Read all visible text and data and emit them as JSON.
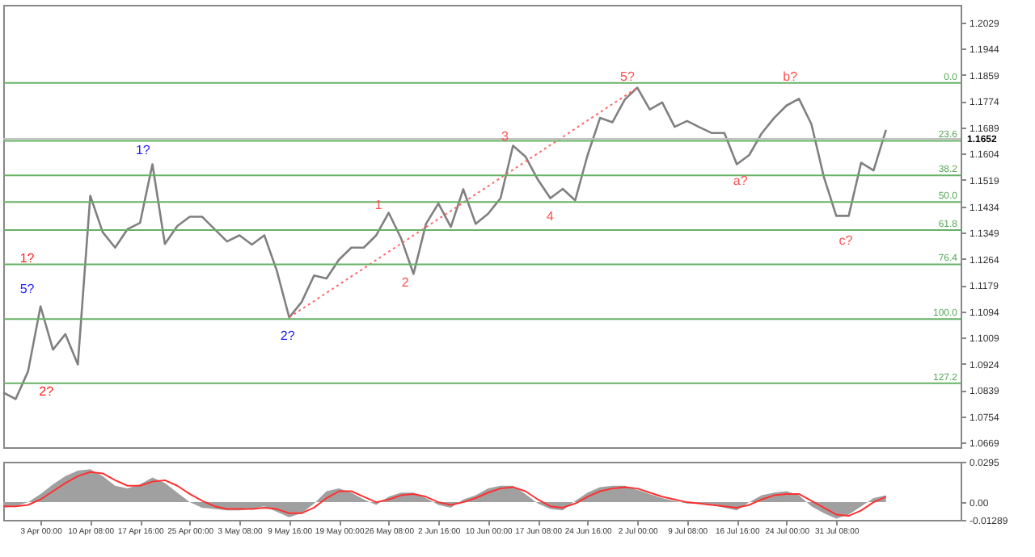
{
  "chart_data": [
    {
      "type": "line",
      "categories": [
        null,
        null,
        null,
        null,
        null,
        null,
        null,
        null,
        null,
        null,
        null,
        null,
        null,
        null,
        null,
        null,
        null,
        null,
        null,
        null,
        null,
        null,
        null,
        null,
        null,
        null,
        null,
        null,
        null,
        null,
        null,
        null,
        null,
        null,
        null,
        null,
        null,
        null,
        null,
        null,
        null,
        null,
        null,
        null,
        null,
        null,
        null,
        null,
        null,
        null,
        null,
        null,
        null,
        null,
        null,
        null,
        null,
        null,
        null,
        null,
        null,
        null,
        null,
        null,
        null,
        null,
        null,
        null,
        null,
        null,
        null,
        null,
        null,
        null,
        null,
        null,
        null,
        null
      ],
      "series": [
        {
          "color": "#808080",
          "values": [
            1.0831,
            1.081,
            1.09,
            1.111,
            1.097,
            1.102,
            1.0922,
            1.1468,
            1.135,
            1.13,
            1.136,
            1.138,
            1.157,
            1.1312,
            1.137,
            1.14,
            1.14,
            1.136,
            1.132,
            1.134,
            1.131,
            1.134,
            1.1226,
            1.1074,
            1.1124,
            1.121,
            1.12,
            1.1261,
            1.13,
            1.13,
            1.134,
            1.1413,
            1.133,
            1.1215,
            1.1377,
            1.1443,
            1.1367,
            1.1489,
            1.1377,
            1.141,
            1.146,
            1.163,
            1.1595,
            1.152,
            1.146,
            1.149,
            1.1453,
            1.16,
            1.172,
            1.1706,
            1.178,
            1.1818,
            1.1747,
            1.177,
            1.1691,
            1.171,
            1.169,
            1.1671,
            1.1671,
            1.157,
            1.16,
            1.167,
            1.172,
            1.176,
            1.1782,
            1.17,
            1.1529,
            1.1403,
            1.1403,
            1.1575,
            1.155,
            1.1681,
            null,
            null,
            null,
            null,
            null,
            null
          ]
        },
        {
          "type": "line",
          "color": "#ff6666",
          "line_style": "dotted",
          "values": [
            null,
            null,
            null,
            null,
            null,
            null,
            null,
            null,
            null,
            null,
            null,
            null,
            null,
            null,
            null,
            null,
            null,
            null,
            null,
            null,
            null,
            null,
            null,
            1.1074,
            1.1101,
            1.1127,
            1.1154,
            1.118,
            1.1207,
            1.1233,
            1.126,
            1.1287,
            1.1313,
            1.134,
            1.1366,
            1.1393,
            1.1419,
            1.1446,
            1.1473,
            1.1499,
            1.1526,
            1.1552,
            1.1579,
            1.1605,
            1.1632,
            1.1658,
            1.1685,
            1.1712,
            1.1738,
            1.1765,
            1.1791,
            1.1818,
            null,
            null,
            null,
            null,
            null,
            null,
            null,
            null,
            null,
            null,
            null,
            null,
            null,
            null,
            null,
            null,
            null,
            null,
            null,
            null,
            null,
            null,
            null,
            null,
            null,
            null
          ]
        }
      ],
      "ylim": [
        1.0654,
        1.2086
      ],
      "yticks": [
        1.0669,
        1.0754,
        1.0839,
        1.0924,
        1.1009,
        1.1094,
        1.1179,
        1.1264,
        1.1349,
        1.1434,
        1.1519,
        1.1604,
        1.1689,
        1.1774,
        1.1859,
        1.1944,
        1.2029
      ],
      "tick_labels": "y",
      "grid": false,
      "marker": "none",
      "ref_lines": [
        {
          "axis": "y",
          "value": 1.1652,
          "label": "1.1652",
          "color": "#c0c0c0"
        },
        {
          "axis": "y",
          "value": 1.1833,
          "color": "#66b266"
        },
        {
          "axis": "y",
          "value": 1.1646,
          "color": "#66b266"
        },
        {
          "axis": "y",
          "value": 1.1534,
          "color": "#66b266"
        },
        {
          "axis": "y",
          "value": 1.1448,
          "color": "#66b266"
        },
        {
          "axis": "y",
          "value": 1.1357,
          "color": "#66b266"
        },
        {
          "axis": "y",
          "value": 1.1246,
          "color": "#66b266"
        },
        {
          "axis": "y",
          "value": 1.1069,
          "color": "#66b266"
        },
        {
          "axis": "y",
          "value": 1.0861,
          "color": "#66b266"
        }
      ],
      "annotations": [
        {
          "text": "0.0",
          "y": 1.1833
        },
        {
          "text": "23.6",
          "y": 1.1646
        },
        {
          "text": "38.2",
          "y": 1.1534
        },
        {
          "text": "50.0",
          "y": 1.1448
        },
        {
          "text": "61.8",
          "y": 1.1357
        },
        {
          "text": "76.4",
          "y": 1.1246
        },
        {
          "text": "100.0",
          "y": 1.1069
        },
        {
          "text": "127.2",
          "y": 1.0861
        },
        "1?",
        "5?",
        "2?",
        "1?",
        "2?",
        "1",
        "2",
        "3",
        "4",
        "5?",
        "a?",
        "b?",
        "c?"
      ]
    },
    {
      "type": "area",
      "categories": [
        null,
        null,
        null,
        "3 Apr 00:00",
        null,
        null,
        null,
        "10 Apr 08:00",
        null,
        null,
        null,
        "17 Apr 16:00",
        null,
        null,
        null,
        "25 Apr 00:00",
        null,
        null,
        null,
        "3 May 08:00",
        null,
        null,
        null,
        "9 May 16:00",
        null,
        null,
        null,
        "19 May 00:00",
        null,
        null,
        null,
        "26 May 08:00",
        null,
        null,
        null,
        "2 Jun 16:00",
        null,
        null,
        null,
        "10 Jun 00:00",
        null,
        null,
        null,
        "17 Jun 08:00",
        null,
        null,
        null,
        "24 Jun 16:00",
        null,
        null,
        null,
        "2 Jul 00:00",
        null,
        null,
        null,
        "9 Jul 08:00",
        null,
        null,
        null,
        "16 Jul 16:00",
        null,
        null,
        null,
        "24 Jul 00:00",
        null,
        null,
        null,
        "31 Jul 08:00",
        null,
        null,
        null,
        null,
        null,
        null,
        null,
        null,
        null,
        null
      ],
      "series": [
        {
          "color": "#a0a0a0",
          "values": [
            -0.004,
            -0.003,
            0.0,
            0.006,
            0.013,
            0.019,
            0.023,
            0.024,
            0.019,
            0.012,
            0.01,
            0.013,
            0.018,
            0.014,
            0.007,
            0.0,
            -0.004,
            -0.005,
            -0.006,
            -0.006,
            -0.005,
            -0.003,
            -0.007,
            -0.011,
            -0.008,
            -0.001,
            0.008,
            0.01,
            0.007,
            0.002,
            -0.002,
            0.004,
            0.007,
            0.007,
            0.003,
            -0.002,
            -0.004,
            0.002,
            0.005,
            0.01,
            0.012,
            0.012,
            0.006,
            -0.001,
            -0.005,
            -0.006,
            0.001,
            0.007,
            0.011,
            0.012,
            0.012,
            0.009,
            0.006,
            0.003,
            0.001,
            -0.001,
            -0.001,
            -0.002,
            -0.004,
            -0.006,
            0.0,
            0.005,
            0.007,
            0.008,
            0.005,
            -0.003,
            -0.008,
            -0.012,
            -0.009,
            -0.003,
            0.003,
            0.005,
            null,
            null,
            null,
            null,
            null,
            null
          ]
        },
        {
          "type": "line",
          "color": "#ff3030",
          "values": [
            -0.003,
            -0.003,
            -0.002,
            0.002,
            0.008,
            0.014,
            0.019,
            0.022,
            0.021,
            0.016,
            0.012,
            0.012,
            0.015,
            0.016,
            0.012,
            0.006,
            0.001,
            -0.003,
            -0.005,
            -0.005,
            -0.005,
            -0.004,
            -0.005,
            -0.008,
            -0.008,
            -0.004,
            0.003,
            0.008,
            0.008,
            0.004,
            0.0,
            0.002,
            0.005,
            0.006,
            0.004,
            0.0,
            -0.002,
            0.0,
            0.003,
            0.007,
            0.01,
            0.011,
            0.008,
            0.002,
            -0.003,
            -0.004,
            -0.001,
            0.004,
            0.008,
            0.01,
            0.011,
            0.01,
            0.007,
            0.004,
            0.002,
            0.0,
            -0.001,
            -0.002,
            -0.003,
            -0.004,
            -0.002,
            0.002,
            0.005,
            0.006,
            0.006,
            0.001,
            -0.004,
            -0.009,
            -0.01,
            -0.006,
            0.0,
            0.004,
            null,
            null,
            null,
            null,
            null,
            null
          ]
        }
      ],
      "ylim": [
        -0.01289,
        0.0295
      ],
      "yticks": [
        -0.01289,
        {
          "value": 0,
          "label": "0.00"
        },
        0.0295
      ],
      "grid": false,
      "marker": "none"
    }
  ]
}
